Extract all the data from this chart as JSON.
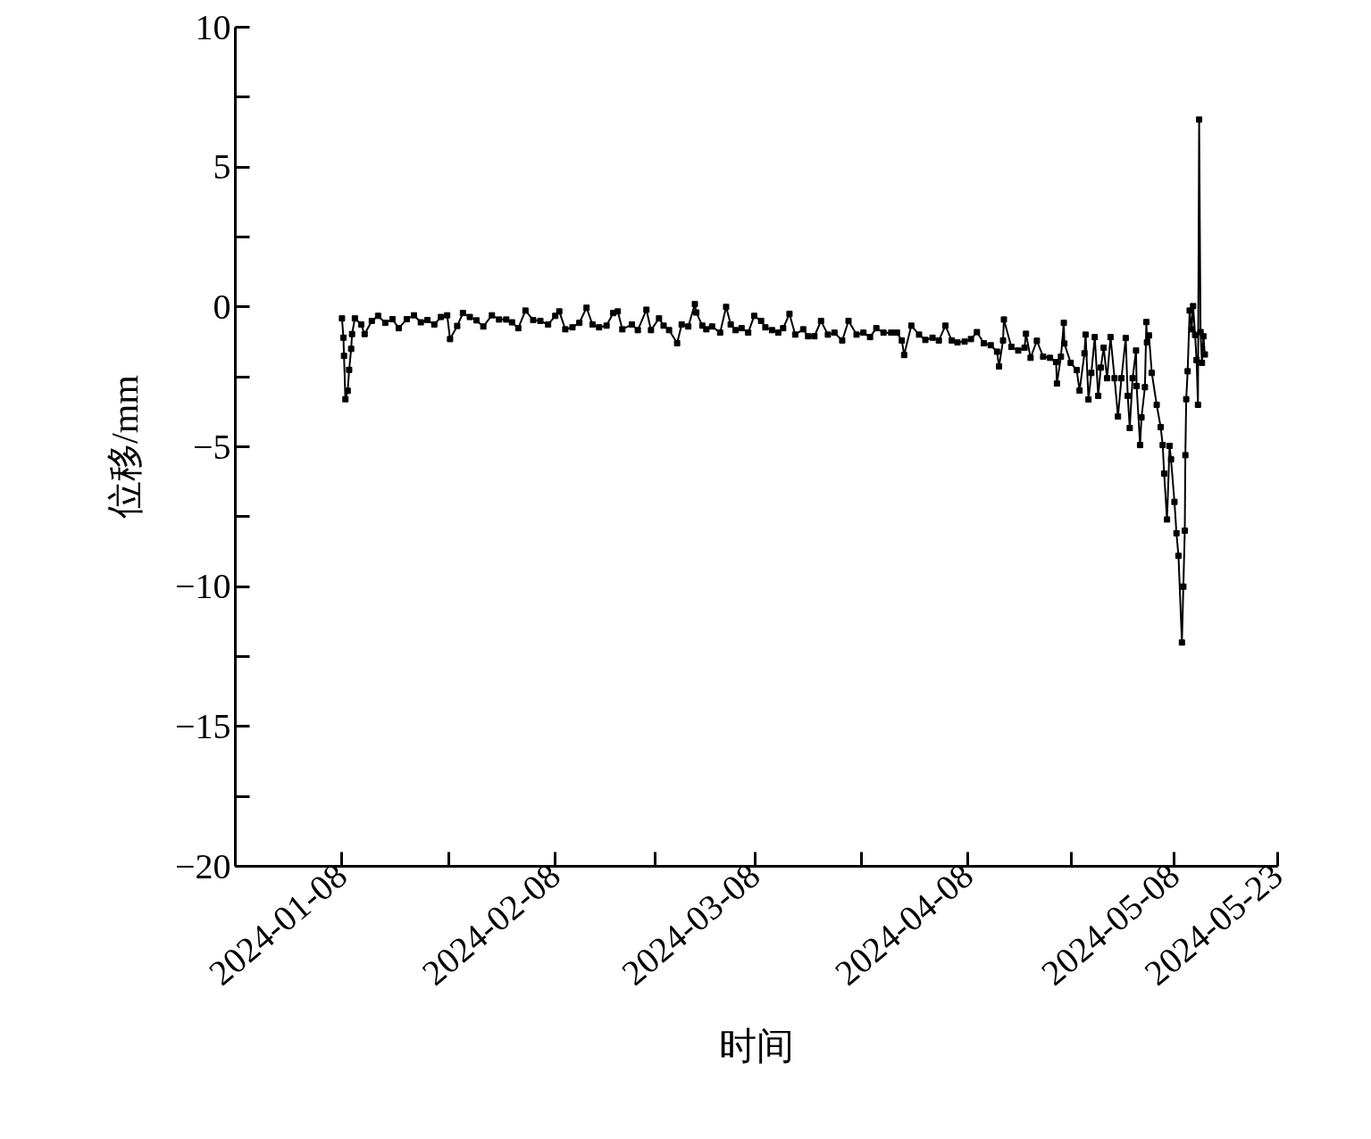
{
  "chart_data": {
    "type": "line",
    "xlabel": "时间",
    "ylabel": "位移/mm",
    "marker": "square",
    "line_style": "solid",
    "xlim": [
      "2023-12-23T12:00",
      "2024-05-23"
    ],
    "ylim": [
      -20,
      10
    ],
    "xticks": [
      "2024-01-08",
      {
        "value": "2024-01-23T12:00",
        "label": null
      },
      "2024-02-08",
      {
        "value": "2024-02-22T12:00",
        "label": null
      },
      "2024-03-08",
      {
        "value": "2024-03-23T12:00",
        "label": null
      },
      "2024-04-08",
      {
        "value": "2024-04-23",
        "label": null
      },
      "2024-05-08",
      "2024-05-23"
    ],
    "yticks": [
      {
        "value": -20,
        "label": "−20"
      },
      {
        "value": -17.5,
        "label": null
      },
      {
        "value": -15,
        "label": "−15"
      },
      {
        "value": -12.5,
        "label": null
      },
      {
        "value": -10,
        "label": "−10"
      },
      {
        "value": -7.5,
        "label": null
      },
      {
        "value": -5,
        "label": "−5"
      },
      {
        "value": -2.5,
        "label": null
      },
      {
        "value": 0,
        "label": "0"
      },
      {
        "value": 2.5,
        "label": null
      },
      {
        "value": 5,
        "label": "5"
      },
      {
        "value": 7.5,
        "label": null
      },
      {
        "value": 10,
        "label": "10"
      }
    ],
    "x": [
      "2024-01-08T00:00",
      "2024-01-08T05:00",
      "2024-01-08T07:00",
      "2024-01-08T12:00",
      "2024-01-08T20:00",
      "2024-01-09T01:00",
      "2024-01-09T08:00",
      "2024-01-09T11:00",
      "2024-01-09T21:00",
      "2024-01-10T19:00",
      "2024-01-11T07:00",
      "2024-01-12T08:00",
      "2024-01-13T06:00",
      "2024-01-14T07:00",
      "2024-01-15T08:00",
      "2024-01-16T06:00",
      "2024-01-17T10:00",
      "2024-01-18T11:00",
      "2024-01-19T11:00",
      "2024-01-20T10:00",
      "2024-01-21T10:00",
      "2024-01-22T09:00",
      "2024-01-23T07:00",
      "2024-01-23T17:00",
      "2024-01-24T18:00",
      "2024-01-25T14:00",
      "2024-01-26T14:00",
      "2024-01-27T13:00",
      "2024-01-28T13:00",
      "2024-01-29T19:00",
      "2024-01-30T20:00",
      "2024-01-31T21:00",
      "2024-02-01T17:00",
      "2024-02-02T15:00",
      "2024-02-03T16:00",
      "2024-02-04T19:00",
      "2024-02-05T20:00",
      "2024-02-06T23:00",
      "2024-02-08T00:00",
      "2024-02-08T14:00",
      "2024-02-09T11:00",
      "2024-02-10T12:00",
      "2024-02-11T12:00",
      "2024-02-12T13:00",
      "2024-02-13T10:00",
      "2024-02-14T09:00",
      "2024-02-15T11:00",
      "2024-02-16T10:00",
      "2024-02-17T02:00",
      "2024-02-17T18:00",
      "2024-02-19T03:00",
      "2024-02-20T00:00",
      "2024-02-21T06:00",
      "2024-02-21T22:00",
      "2024-02-23T02:00",
      "2024-02-23T18:00",
      "2024-02-24T13:00",
      "2024-02-25T17:00",
      "2024-02-26T09:00",
      "2024-02-27T08:00",
      "2024-02-28T07:00",
      "2024-02-28T12:00",
      "2024-02-29T09:00",
      "2024-02-29T23:00",
      "2024-03-01T19:00",
      "2024-03-02T23:00",
      "2024-03-03T20:00",
      "2024-03-04T12:00",
      "2024-03-05T05:00",
      "2024-03-06T02:00",
      "2024-03-07T01:00",
      "2024-03-07T22:00",
      "2024-03-08T22:00",
      "2024-03-09T13:00",
      "2024-03-10T12:00",
      "2024-03-11T10:00",
      "2024-03-12T03:00",
      "2024-03-13T01:00",
      "2024-03-13T21:00",
      "2024-03-15T01:00",
      "2024-03-15T18:00",
      "2024-03-16T16:00",
      "2024-03-17T15:00",
      "2024-03-18T15:00",
      "2024-03-19T14:00",
      "2024-03-20T17:00",
      "2024-03-21T15:00",
      "2024-03-22T19:00",
      "2024-03-23T19:00",
      "2024-03-24T18:00",
      "2024-03-25T16:00",
      "2024-03-26T17:00",
      "2024-03-27T20:00",
      "2024-03-28T16:00",
      "2024-03-29T09:00",
      "2024-03-29T17:00",
      "2024-03-30T18:00",
      "2024-03-31T21:00",
      "2024-04-01T19:00",
      "2024-04-02T20:00",
      "2024-04-03T18:00",
      "2024-04-04T17:00",
      "2024-04-05T15:00",
      "2024-04-06T11:00",
      "2024-04-07T12:00",
      "2024-04-08T10:00",
      "2024-04-09T07:00",
      "2024-04-10T07:00",
      "2024-04-11T07:00",
      "2024-04-12T05:00",
      "2024-04-12T12:00",
      "2024-04-13T02:00",
      "2024-04-13T05:00",
      "2024-04-14T07:00",
      "2024-04-15T07:00",
      "2024-04-16T05:00",
      "2024-04-16T10:00",
      "2024-04-17T02:00",
      "2024-04-18T00:00",
      "2024-04-18T22:00",
      "2024-04-19T22:00",
      "2024-04-20T19:00",
      "2024-04-20T22:00",
      "2024-04-21T12:00",
      "2024-04-21T22:00",
      "2024-04-22T00:00",
      "2024-04-22T22:00",
      "2024-04-23T19:00",
      "2024-04-24T05:00",
      "2024-04-24T22:00",
      "2024-04-25T02:00",
      "2024-04-25T12:00",
      "2024-04-25T22:00",
      "2024-04-26T10:00",
      "2024-04-26T22:00",
      "2024-04-27T07:00",
      "2024-04-27T17:00",
      "2024-04-28T05:00",
      "2024-04-28T17:00",
      "2024-04-29T07:00",
      "2024-04-29T19:00",
      "2024-04-30T07:00",
      "2024-04-30T22:00",
      "2024-05-01T05:00",
      "2024-05-01T12:00",
      "2024-05-01T22:00",
      "2024-05-02T10:00",
      "2024-05-02T12:00",
      "2024-05-03T00:00",
      "2024-05-03T05:00",
      "2024-05-03T17:00",
      "2024-05-03T22:00",
      "2024-05-04T00:00",
      "2024-05-04T07:00",
      "2024-05-04T17:00",
      "2024-05-05T10:00",
      "2024-05-06T00:00",
      "2024-05-06T07:00",
      "2024-05-06T12:00",
      "2024-05-06T22:00",
      "2024-05-07T07:00",
      "2024-05-07T12:00",
      "2024-05-08T00:00",
      "2024-05-08T07:00",
      "2024-05-08T14:00",
      "2024-05-09T02:00",
      "2024-05-09T07:00",
      "2024-05-09T12:00",
      "2024-05-09T14:00",
      "2024-05-09T17:00",
      "2024-05-09T22:00",
      "2024-05-10T05:00",
      "2024-05-10T12:00",
      "2024-05-10T17:00",
      "2024-05-11T00:00",
      "2024-05-11T05:00",
      "2024-05-11T10:00",
      "2024-05-11T14:00",
      "2024-05-11T19:00",
      "2024-05-12T00:00",
      "2024-05-12T05:00",
      "2024-05-12T10:00"
    ],
    "series": [
      {
        "color": "#000000",
        "values": [
          -0.41,
          -1.1,
          -1.75,
          -3.3,
          -3.0,
          -2.25,
          -1.5,
          -0.97,
          -0.41,
          -0.63,
          -0.97,
          -0.5,
          -0.32,
          -0.57,
          -0.44,
          -0.76,
          -0.44,
          -0.3,
          -0.55,
          -0.47,
          -0.63,
          -0.36,
          -0.3,
          -1.15,
          -0.68,
          -0.22,
          -0.36,
          -0.48,
          -0.7,
          -0.3,
          -0.45,
          -0.45,
          -0.55,
          -0.76,
          -0.13,
          -0.47,
          -0.5,
          -0.63,
          -0.32,
          -0.16,
          -0.8,
          -0.73,
          -0.57,
          -0.03,
          -0.63,
          -0.73,
          -0.67,
          -0.22,
          -0.16,
          -0.8,
          -0.63,
          -0.83,
          -0.1,
          -0.83,
          -0.41,
          -0.67,
          -0.83,
          -1.3,
          -0.63,
          -0.7,
          0.1,
          -0.2,
          -0.67,
          -0.8,
          -0.7,
          -0.92,
          0.0,
          -0.63,
          -0.83,
          -0.76,
          -0.92,
          -0.32,
          -0.5,
          -0.73,
          -0.83,
          -0.92,
          -0.76,
          -0.25,
          -0.99,
          -0.8,
          -1.05,
          -1.05,
          -0.5,
          -0.99,
          -0.92,
          -1.2,
          -0.5,
          -0.99,
          -0.92,
          -1.08,
          -0.76,
          -0.92,
          -0.92,
          -0.92,
          -1.2,
          -1.72,
          -0.67,
          -0.99,
          -1.18,
          -1.1,
          -1.2,
          -0.67,
          -1.2,
          -1.27,
          -1.24,
          -1.15,
          -0.9,
          -1.3,
          -1.37,
          -1.6,
          -2.13,
          -1.2,
          -0.45,
          -1.43,
          -1.56,
          -1.46,
          -0.96,
          -1.82,
          -1.21,
          -1.78,
          -1.82,
          -1.97,
          -2.74,
          -1.78,
          -0.57,
          -1.31,
          -2.0,
          -2.26,
          -2.99,
          -1.66,
          -0.99,
          -3.31,
          -2.36,
          -1.08,
          -3.18,
          -2.17,
          -1.46,
          -2.55,
          -1.08,
          -2.55,
          -3.92,
          -2.55,
          -1.11,
          -3.18,
          -4.33,
          -2.55,
          -1.56,
          -2.83,
          -4.94,
          -3.95,
          -2.87,
          -0.54,
          -1.27,
          -1.02,
          -2.36,
          -3.5,
          -4.3,
          -4.94,
          -5.96,
          -7.6,
          -4.97,
          -5.45,
          -6.97,
          -8.09,
          -8.9,
          -12.0,
          -10.0,
          -8.0,
          -5.3,
          -3.3,
          -2.3,
          -0.13,
          -0.8,
          0.03,
          -1.0,
          -1.9,
          -3.5,
          6.7,
          -0.9,
          -2.0,
          -1.05,
          -1.7
        ]
      }
    ]
  }
}
